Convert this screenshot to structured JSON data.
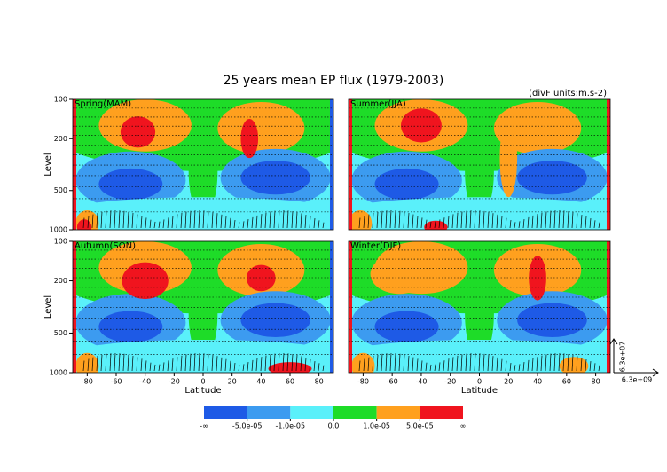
{
  "chart_data": {
    "type": "contour",
    "title": "25 years mean EP flux (1979-2003)",
    "units_note": "(divF units:m.s-2)",
    "panels": [
      {
        "title": "Spring(MAM)"
      },
      {
        "title": "Summer(JJA)"
      },
      {
        "title": "Autumn(SON)"
      },
      {
        "title": "Winter(DJF)"
      }
    ],
    "xlabel": "Latitude",
    "ylabel": "Level",
    "xlim": [
      -90,
      90
    ],
    "xticks": [
      -80,
      -60,
      -40,
      -20,
      0,
      20,
      40,
      60,
      80
    ],
    "ylim": [
      1000,
      100
    ],
    "yticks": [
      100,
      200,
      500,
      1000
    ],
    "ylog": true,
    "colorbar": {
      "colors": [
        "#1e5ae6",
        "#3c9bf0",
        "#5af0fa",
        "#1edc28",
        "#ffa01e",
        "#f0141e"
      ],
      "lower_label": "-∞",
      "upper_label": "∞",
      "ticks": [
        {
          "value": -5e-05,
          "label": "-5.0e-05"
        },
        {
          "value": -1e-05,
          "label": "-1.0e-05"
        },
        {
          "value": 0,
          "label": "0.0"
        },
        {
          "value": 1e-05,
          "label": "1.0e-05"
        },
        {
          "value": 5e-05,
          "label": "5.0e-05"
        }
      ]
    },
    "arrow_scale": {
      "vertical": "6.3e+07",
      "horizontal": "6.3e+09"
    }
  }
}
